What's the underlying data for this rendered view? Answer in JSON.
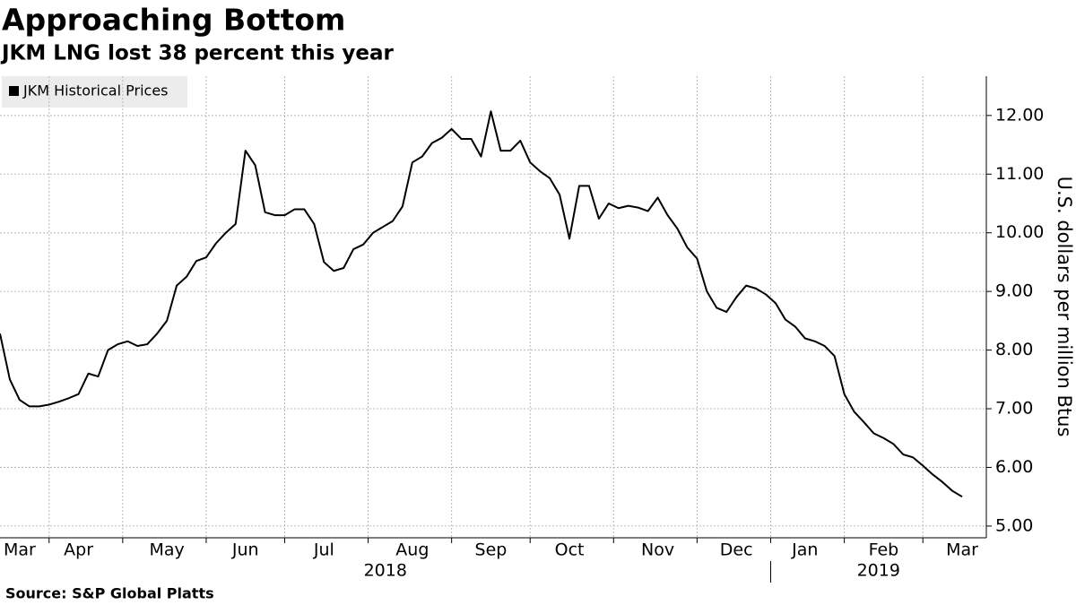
{
  "chart_data": {
    "type": "line",
    "title": "Approaching Bottom",
    "subtitle": "JKM LNG lost 38 percent this year",
    "source": "Source: S&P Global Platts",
    "y_axis_label": "U.S. dollars per million Btus",
    "categories": [
      null,
      null,
      "Mar",
      null,
      null,
      null,
      null,
      null,
      "Apr",
      null,
      null,
      null,
      null,
      null,
      null,
      null,
      null,
      "May",
      null,
      null,
      null,
      null,
      null,
      null,
      null,
      "Jun",
      null,
      null,
      null,
      null,
      null,
      null,
      null,
      "Jul",
      null,
      null,
      null,
      null,
      null,
      null,
      null,
      null,
      "Aug",
      null,
      null,
      null,
      null,
      null,
      null,
      null,
      "Sep",
      null,
      null,
      null,
      null,
      null,
      null,
      null,
      "Oct",
      null,
      null,
      null,
      null,
      null,
      null,
      null,
      null,
      "Nov",
      null,
      null,
      null,
      null,
      null,
      null,
      null,
      "Dec",
      null,
      null,
      null,
      null,
      null,
      null,
      "Jan",
      null,
      null,
      null,
      null,
      null,
      null,
      null,
      "Feb",
      null,
      null,
      null,
      null,
      null,
      null,
      null,
      "Mar"
    ],
    "year_labels": [
      "2018",
      "2019"
    ],
    "series": [
      {
        "name": "JKM Historical Prices",
        "color": "#000000",
        "values": [
          8.28,
          7.5,
          7.15,
          7.04,
          7.04,
          7.07,
          7.12,
          7.18,
          7.25,
          7.6,
          7.55,
          8.0,
          8.1,
          8.15,
          8.07,
          8.1,
          8.28,
          8.5,
          9.1,
          9.25,
          9.52,
          9.58,
          9.82,
          10.0,
          10.15,
          11.4,
          11.15,
          10.35,
          10.3,
          10.3,
          10.4,
          10.4,
          10.15,
          9.5,
          9.35,
          9.4,
          9.72,
          9.8,
          10.0,
          10.1,
          10.2,
          10.45,
          11.2,
          11.3,
          11.53,
          11.62,
          11.77,
          11.6,
          11.6,
          11.3,
          12.07,
          11.4,
          11.4,
          11.57,
          11.2,
          11.05,
          10.93,
          10.65,
          9.9,
          10.8,
          10.8,
          10.24,
          10.5,
          10.42,
          10.46,
          10.43,
          10.37,
          10.6,
          10.3,
          10.07,
          9.75,
          9.56,
          9.0,
          8.72,
          8.65,
          8.9,
          9.1,
          9.05,
          8.95,
          8.8,
          8.52,
          8.4,
          8.2,
          8.15,
          8.07,
          7.9,
          7.25,
          6.95,
          6.77,
          6.58,
          6.5,
          6.4,
          6.22,
          6.17,
          6.03,
          5.88,
          5.75,
          5.6,
          5.5
        ]
      }
    ],
    "ylim": [
      4.8,
      12.67
    ],
    "yticks": [
      {
        "value": 5,
        "label": "5.00"
      },
      {
        "value": 6,
        "label": "6.00"
      },
      {
        "value": 7,
        "label": "7.00"
      },
      {
        "value": 8,
        "label": "8.00"
      },
      {
        "value": 9,
        "label": "9.00"
      },
      {
        "value": 10,
        "label": "10.00"
      },
      {
        "value": 11,
        "label": "11.00"
      },
      {
        "value": 12,
        "label": "12.00"
      }
    ],
    "grid": true,
    "legend": "upper left"
  }
}
